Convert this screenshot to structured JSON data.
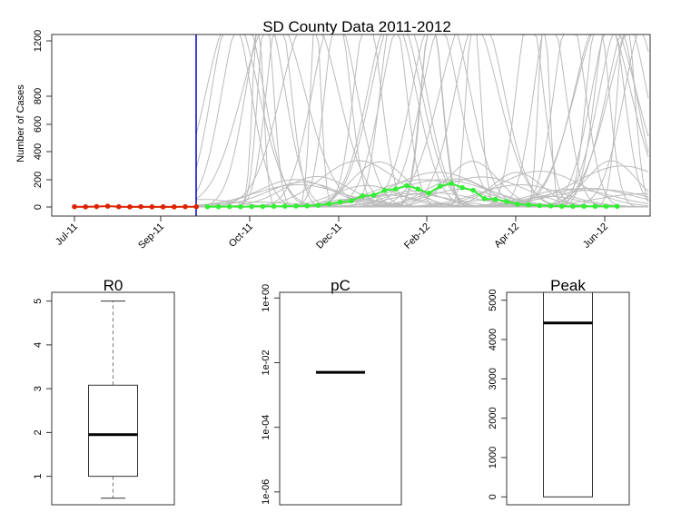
{
  "chart_data": [
    {
      "type": "line",
      "title": "SD County Data 2011-2012",
      "xlabel": "",
      "ylabel": "Number of Cases",
      "x_tick_labels": [
        "Jul-11",
        "Sep-11",
        "Oct-11",
        "Dec-11",
        "Feb-12",
        "Apr-12",
        "Jun-12"
      ],
      "y_tick_labels": [
        "0",
        "200",
        "400",
        "600",
        "800",
        "1200"
      ],
      "ylim": [
        0,
        1250
      ],
      "forecast_start_label": "Sep-11",
      "colors": {
        "observed": "#dd2200",
        "forecast": "#33ee33",
        "simulations": "#bbbbbb",
        "divider": "#0000cc"
      },
      "series": [
        {
          "values": [
            2,
            1,
            3,
            6,
            2,
            1,
            2,
            1,
            1,
            1,
            2,
            2
          ]
        },
        {
          "values": [
            2,
            2,
            3,
            2,
            3,
            4,
            5,
            6,
            7,
            8,
            12,
            22,
            35,
            45,
            80,
            85,
            120,
            130,
            155,
            130,
            100,
            150,
            170,
            140,
            120,
            60,
            55,
            40,
            20,
            15,
            10,
            8,
            5,
            5,
            5,
            5,
            5,
            5
          ]
        }
      ]
    },
    {
      "type": "boxplot",
      "title": "R0",
      "y_tick_labels": [
        "1",
        "2",
        "3",
        "4",
        "5"
      ],
      "ylim": [
        0.35,
        5.2
      ],
      "whisker_low": 0.5,
      "q1": 1.0,
      "median": 1.95,
      "q3": 3.08,
      "whisker_high": 5.0
    },
    {
      "type": "boxplot",
      "title": "pC",
      "y_scale": "log",
      "y_tick_labels": [
        "1e-06",
        "1e-04",
        "1e-02",
        "1e+00"
      ],
      "ylim": [
        4e-07,
        1.5
      ],
      "median": 0.005
    },
    {
      "type": "boxplot",
      "title": "Peak",
      "y_tick_labels": [
        "0",
        "1000",
        "2000",
        "3000",
        "4000",
        "5000"
      ],
      "ylim": [
        -200,
        5200
      ],
      "whisker_low": 0,
      "q1": 0,
      "median": 4420,
      "q3": 5200,
      "whisker_high": 5200
    }
  ]
}
